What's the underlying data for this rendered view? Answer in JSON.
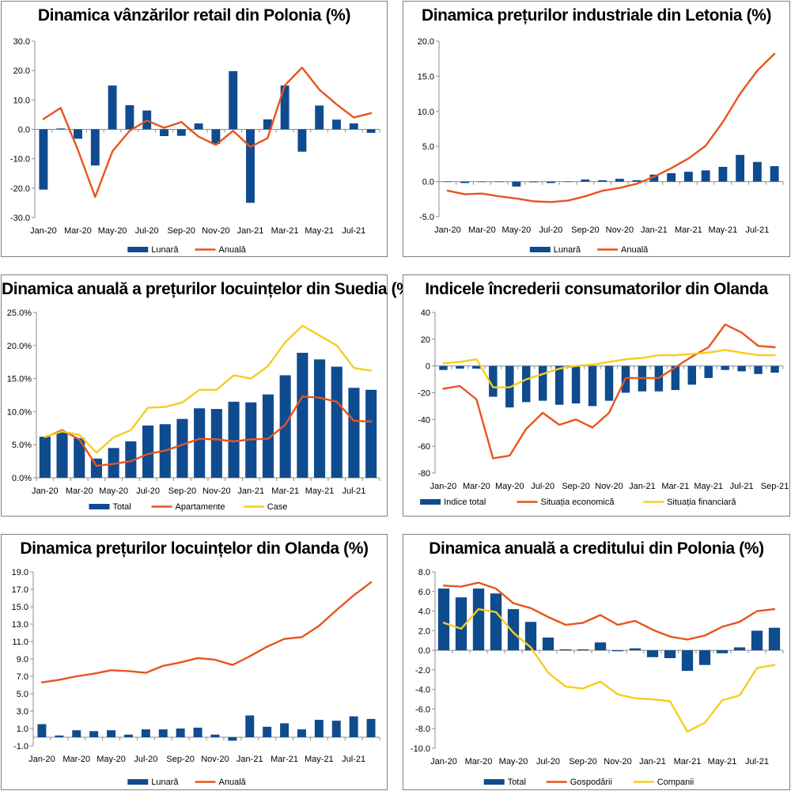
{
  "colors": {
    "bar": "#0f4b8f",
    "red": "#e8541e",
    "yellow": "#f5cd1e",
    "axis": "#7f7f7f",
    "grid": "#d9d9d9"
  },
  "x_tick_labels": [
    "Jan-20",
    "Mar-20",
    "May-20",
    "Jul-20",
    "Sep-20",
    "Nov-20",
    "Jan-21",
    "Mar-21",
    "May-21",
    "Jul-21"
  ],
  "x_tick_labels_sep": [
    "Jan-20",
    "Mar-20",
    "May-20",
    "Jul-20",
    "Sep-20",
    "Nov-20",
    "Jan-21",
    "Mar-21",
    "May-21",
    "Jul-21",
    "Sep-21"
  ],
  "chart_data": [
    {
      "id": "retail-poland",
      "type": "bar+line",
      "title": "Dinamica vânzărilor retail din Polonia (%)",
      "categories": [
        "Jan-20",
        "Feb-20",
        "Mar-20",
        "Apr-20",
        "May-20",
        "Jun-20",
        "Jul-20",
        "Aug-20",
        "Sep-20",
        "Oct-20",
        "Nov-20",
        "Dec-20",
        "Jan-21",
        "Feb-21",
        "Mar-21",
        "Apr-21",
        "May-21",
        "Jun-21",
        "Jul-21",
        "Aug-21"
      ],
      "ylim": [
        -30,
        30
      ],
      "yticks": [
        "30.0",
        "20.0",
        "10.0",
        "0.0",
        "-10.0",
        "-20.0",
        "-30.0"
      ],
      "ytick_values": [
        30,
        20,
        10,
        0,
        -10,
        -20,
        -30
      ],
      "series": [
        {
          "name": "Lunară",
          "kind": "bar",
          "color": "#0f4b8f",
          "values": [
            -20.5,
            0.3,
            -3.2,
            -12.3,
            14.9,
            8.2,
            6.4,
            -2.3,
            -2.2,
            2.0,
            -5.0,
            19.8,
            -25.0,
            3.4,
            14.9,
            -7.6,
            8.1,
            3.3,
            2.0,
            -1.2
          ]
        },
        {
          "name": "Anuală",
          "kind": "line",
          "color": "#e8541e",
          "values": [
            3.5,
            7.3,
            -7.0,
            -23.0,
            -7.5,
            -0.5,
            3.0,
            0.5,
            2.5,
            -2.5,
            -5.3,
            -0.5,
            -6.0,
            -3.0,
            15.0,
            21.0,
            13.5,
            8.5,
            4.0,
            5.5
          ]
        }
      ],
      "legend": [
        "Lunară",
        "Anuală"
      ]
    },
    {
      "id": "industrial-latvia",
      "type": "bar+line",
      "title": "Dinamica prețurilor industriale din Letonia (%)",
      "categories": [
        "Jan-20",
        "Feb-20",
        "Mar-20",
        "Apr-20",
        "May-20",
        "Jun-20",
        "Jul-20",
        "Aug-20",
        "Sep-20",
        "Oct-20",
        "Nov-20",
        "Dec-20",
        "Jan-21",
        "Feb-21",
        "Mar-21",
        "Apr-21",
        "May-21",
        "Jun-21",
        "Jul-21",
        "Aug-21"
      ],
      "ylim": [
        -5,
        20
      ],
      "yticks": [
        "20.0",
        "15.0",
        "10.0",
        "5.0",
        "0.0",
        "-5.0"
      ],
      "ytick_values": [
        20,
        15,
        10,
        5,
        0,
        -5
      ],
      "series": [
        {
          "name": "Lunară",
          "kind": "bar",
          "color": "#0f4b8f",
          "values": [
            0.0,
            -0.2,
            0.0,
            0.0,
            -0.7,
            -0.1,
            -0.2,
            0.0,
            0.3,
            0.2,
            0.4,
            0.2,
            1.0,
            1.2,
            1.4,
            1.6,
            2.1,
            3.8,
            2.8,
            2.2
          ]
        },
        {
          "name": "Anuală",
          "kind": "line",
          "color": "#e8541e",
          "values": [
            -1.3,
            -1.8,
            -1.7,
            -2.1,
            -2.4,
            -2.8,
            -2.9,
            -2.7,
            -2.1,
            -1.3,
            -0.9,
            -0.3,
            0.7,
            1.9,
            3.3,
            5.1,
            8.5,
            12.5,
            15.8,
            18.2
          ]
        }
      ],
      "legend": [
        "Lunară",
        "Anuală"
      ]
    },
    {
      "id": "housing-sweden",
      "type": "bar+line",
      "title": "Dinamica anuală a prețurilor locuințelor din Suedia (%)",
      "categories": [
        "Jan-20",
        "Feb-20",
        "Mar-20",
        "Apr-20",
        "May-20",
        "Jun-20",
        "Jul-20",
        "Aug-20",
        "Sep-20",
        "Oct-20",
        "Nov-20",
        "Dec-20",
        "Jan-21",
        "Feb-21",
        "Mar-21",
        "Apr-21",
        "May-21",
        "Jun-21",
        "Jul-21",
        "Aug-21"
      ],
      "ylim": [
        0,
        25
      ],
      "yticks": [
        "25.0%",
        "20.0%",
        "15.0%",
        "10.0%",
        "5.0%",
        "0.0%"
      ],
      "ytick_values": [
        25,
        20,
        15,
        10,
        5,
        0
      ],
      "series": [
        {
          "name": "Total",
          "kind": "bar",
          "color": "#0f4b8f",
          "values": [
            6.2,
            6.9,
            6.0,
            2.9,
            4.5,
            5.5,
            7.9,
            8.1,
            8.9,
            10.5,
            10.4,
            11.5,
            11.4,
            12.6,
            15.5,
            18.9,
            17.9,
            16.8,
            13.6,
            13.3
          ]
        },
        {
          "name": "Apartamente",
          "kind": "line",
          "color": "#e8541e",
          "values": [
            6.1,
            7.2,
            5.8,
            1.8,
            2.1,
            2.5,
            3.6,
            4.1,
            5.0,
            5.9,
            5.8,
            5.5,
            5.8,
            5.9,
            8.0,
            12.3,
            12.1,
            11.5,
            8.6,
            8.5
          ]
        },
        {
          "name": "Case",
          "kind": "line",
          "color": "#f5cd1e",
          "values": [
            6.2,
            7.0,
            6.5,
            3.8,
            6.1,
            7.2,
            10.6,
            10.7,
            11.4,
            13.3,
            13.3,
            15.5,
            15.0,
            16.9,
            20.5,
            23.0,
            21.5,
            20.0,
            16.6,
            16.2
          ]
        }
      ],
      "legend": [
        "Total",
        "Apartamente",
        "Case"
      ]
    },
    {
      "id": "consumer-netherlands",
      "type": "bar+line",
      "title": "Indicele încrederii consumatorilor din Olanda",
      "categories": [
        "Jan-20",
        "Feb-20",
        "Mar-20",
        "Apr-20",
        "May-20",
        "Jun-20",
        "Jul-20",
        "Aug-20",
        "Sep-20",
        "Oct-20",
        "Nov-20",
        "Dec-20",
        "Jan-21",
        "Feb-21",
        "Mar-21",
        "Apr-21",
        "May-21",
        "Jun-21",
        "Jul-21",
        "Aug-21",
        "Sep-21"
      ],
      "ylim": [
        -80,
        40
      ],
      "yticks": [
        "40",
        "20",
        "0",
        "-20",
        "-40",
        "-60",
        "-80"
      ],
      "ytick_values": [
        40,
        20,
        0,
        -20,
        -40,
        -60,
        -80
      ],
      "series": [
        {
          "name": "Indice total",
          "kind": "bar",
          "color": "#0f4b8f",
          "values": [
            -3,
            -2,
            -2,
            -23,
            -31,
            -27,
            -26,
            -29,
            -28,
            -30,
            -26,
            -20,
            -19,
            -19,
            -18,
            -14,
            -9,
            -3,
            -4,
            -6,
            -5
          ]
        },
        {
          "name": "Situația economică",
          "kind": "line",
          "color": "#e8541e",
          "values": [
            -17,
            -15,
            -25,
            -69,
            -67,
            -47,
            -35,
            -44,
            -40,
            -46,
            -35,
            -9,
            -9,
            -9,
            -1,
            7,
            14,
            31,
            25,
            15,
            14
          ]
        },
        {
          "name": "Situația financiară",
          "kind": "line",
          "color": "#f5cd1e",
          "values": [
            2,
            3,
            5,
            -16,
            -16,
            -10,
            -6,
            -2,
            0,
            1,
            3,
            5,
            6,
            8,
            8,
            9,
            10,
            12,
            10,
            8,
            8
          ]
        }
      ],
      "legend": [
        "Indice total",
        "Situația economică",
        "Situația financiară"
      ]
    },
    {
      "id": "housing-netherlands",
      "type": "bar+line",
      "title": "Dinamica prețurilor locuințelor din Olanda (%)",
      "categories": [
        "Jan-20",
        "Feb-20",
        "Mar-20",
        "Apr-20",
        "May-20",
        "Jun-20",
        "Jul-20",
        "Aug-20",
        "Sep-20",
        "Oct-20",
        "Nov-20",
        "Dec-20",
        "Jan-21",
        "Feb-21",
        "Mar-21",
        "Apr-21",
        "May-21",
        "Jun-21",
        "Jul-21",
        "Aug-21"
      ],
      "ylim": [
        -1,
        19
      ],
      "yticks": [
        "19.0",
        "17.0",
        "15.0",
        "13.0",
        "11.0",
        "9.0",
        "7.0",
        "5.0",
        "3.0",
        "1.0",
        "-1.0"
      ],
      "ytick_values": [
        19,
        17,
        15,
        13,
        11,
        9,
        7,
        5,
        3,
        1,
        -1
      ],
      "series": [
        {
          "name": "Lunară",
          "kind": "bar",
          "color": "#0f4b8f",
          "values": [
            1.5,
            0.2,
            0.8,
            0.7,
            0.8,
            0.3,
            0.9,
            0.9,
            1.0,
            1.1,
            0.3,
            -0.4,
            2.5,
            1.2,
            1.6,
            0.9,
            2.0,
            1.9,
            2.4,
            2.1
          ]
        },
        {
          "name": "Anuală",
          "kind": "line",
          "color": "#e8541e",
          "values": [
            6.3,
            6.6,
            7.0,
            7.3,
            7.7,
            7.6,
            7.4,
            8.2,
            8.6,
            9.1,
            8.9,
            8.3,
            9.3,
            10.4,
            11.3,
            11.5,
            12.8,
            14.6,
            16.3,
            17.8
          ]
        }
      ],
      "legend": [
        "Lunară",
        "Anuală"
      ]
    },
    {
      "id": "credit-poland",
      "type": "bar+line",
      "title": "Dinamica anuală a creditului din Polonia (%)",
      "categories": [
        "Jan-20",
        "Feb-20",
        "Mar-20",
        "Apr-20",
        "May-20",
        "Jun-20",
        "Jul-20",
        "Aug-20",
        "Sep-20",
        "Oct-20",
        "Nov-20",
        "Dec-20",
        "Jan-21",
        "Feb-21",
        "Mar-21",
        "Apr-21",
        "May-21",
        "Jun-21",
        "Jul-21",
        "Aug-21"
      ],
      "ylim": [
        -10,
        8
      ],
      "yticks": [
        "8.0",
        "6.0",
        "4.0",
        "2.0",
        "0.0",
        "-2.0",
        "-4.0",
        "-6.0",
        "-8.0",
        "-10.0"
      ],
      "ytick_values": [
        8,
        6,
        4,
        2,
        0,
        -2,
        -4,
        -6,
        -8,
        -10
      ],
      "series": [
        {
          "name": "Total",
          "kind": "bar",
          "color": "#0f4b8f",
          "values": [
            6.3,
            5.4,
            6.3,
            5.8,
            4.2,
            2.9,
            1.3,
            0.1,
            0.1,
            0.8,
            -0.1,
            0.2,
            -0.7,
            -0.8,
            -2.1,
            -1.5,
            -0.3,
            0.3,
            2.0,
            2.3
          ]
        },
        {
          "name": "Gospodării",
          "kind": "line",
          "color": "#e8541e",
          "values": [
            6.6,
            6.5,
            6.9,
            6.3,
            4.8,
            4.3,
            3.4,
            2.6,
            2.8,
            3.6,
            2.6,
            3.0,
            2.1,
            1.4,
            1.1,
            1.5,
            2.4,
            2.9,
            4.0,
            4.2
          ]
        },
        {
          "name": "Companii",
          "kind": "line",
          "color": "#f5cd1e",
          "values": [
            2.8,
            2.2,
            4.2,
            3.9,
            1.8,
            0.3,
            -2.3,
            -3.7,
            -3.9,
            -3.2,
            -4.5,
            -4.9,
            -5.0,
            -5.2,
            -8.3,
            -7.4,
            -5.1,
            -4.6,
            -1.8,
            -1.5
          ]
        }
      ],
      "legend": [
        "Total",
        "Gospodării",
        "Companii"
      ]
    }
  ]
}
